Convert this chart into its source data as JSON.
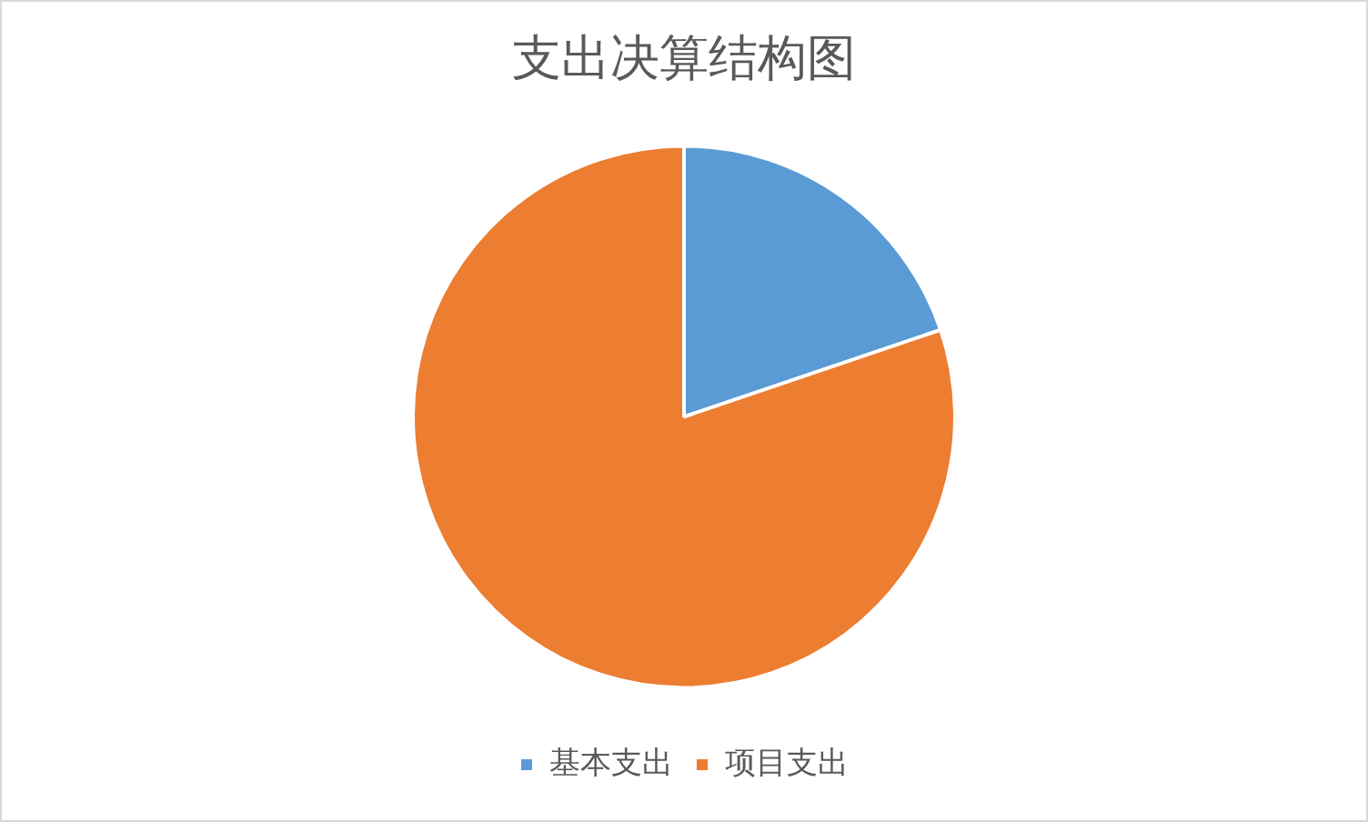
{
  "chart_data": {
    "type": "pie",
    "title": "支出决算结构图",
    "categories": [
      "基本支出",
      "项目支出"
    ],
    "values": [
      19.8,
      80.2
    ],
    "colors": [
      "#5b9bd5",
      "#ed7d31"
    ],
    "legend": "bottom"
  }
}
